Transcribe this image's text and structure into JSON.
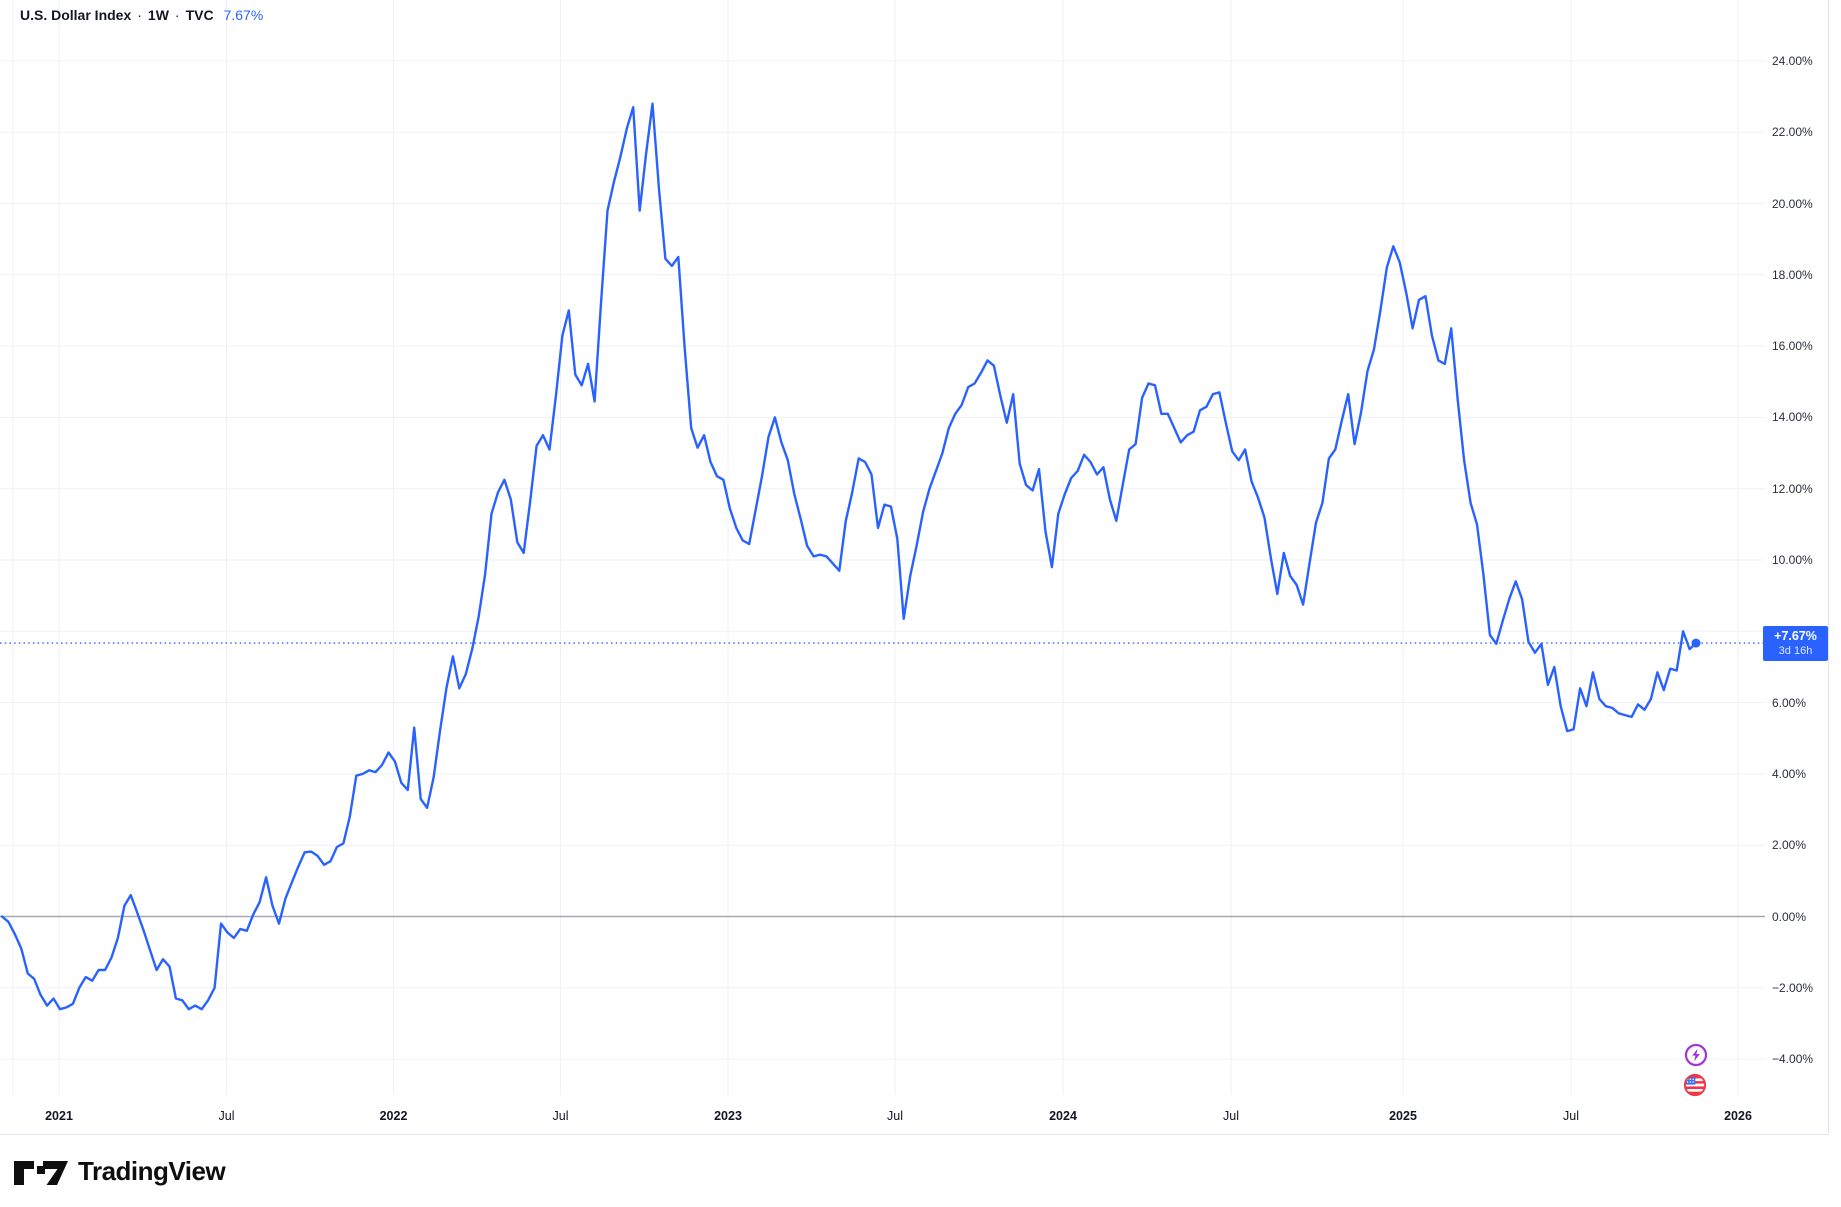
{
  "header": {
    "symbol": "U.S. Dollar Index",
    "separator": "·",
    "interval": "1W",
    "exchange": "TVC",
    "change_pct": "7.67%"
  },
  "price_scale": {
    "labels": [
      "24.00%",
      "22.00%",
      "20.00%",
      "18.00%",
      "16.00%",
      "14.00%",
      "12.00%",
      "10.00%",
      "8.00%",
      "6.00%",
      "4.00%",
      "2.00%",
      "0.00%",
      "−2.00%",
      "−4.00%"
    ],
    "badge": {
      "price": "+7.67%",
      "countdown": "3d 16h"
    }
  },
  "time_scale": {
    "labels": [
      "2021",
      "Jul",
      "2022",
      "Jul",
      "2023",
      "Jul",
      "2024",
      "Jul",
      "2025",
      "Jul",
      "2026"
    ]
  },
  "branding": {
    "logo_text": "TradingView"
  },
  "colors": {
    "line": "#2962FF",
    "grid": "#EEF1F6",
    "zero_line": "#A6A9B3",
    "price_line": "#2962FF",
    "badge_bg": "#2962FF",
    "axis_text": "#2a2e39",
    "border": "#E0E3EB",
    "icon_purple": "#A333D4",
    "icon_red": "#F23645",
    "flag_blue": "#3B6FF0"
  },
  "chart_data": {
    "type": "line",
    "title": "U.S. Dollar Index · 1W · TVC",
    "symbol": "U.S. Dollar Index",
    "interval": "1W",
    "exchange": "TVC",
    "unit": "percent change",
    "current_value_pct": 7.67,
    "price_label": "+7.67%",
    "countdown": "3d 16h",
    "x_start_date": "2020-11-02",
    "x_interval_days": 7,
    "x_tick_labels": [
      "2021",
      "Jul",
      "2022",
      "Jul",
      "2023",
      "Jul",
      "2024",
      "Jul",
      "2025",
      "Jul",
      "2026"
    ],
    "y_ticks": [
      24,
      22,
      20,
      18,
      16,
      14,
      12,
      10,
      8,
      6,
      4,
      2,
      0,
      -2,
      -4
    ],
    "ylim": [
      -5.1,
      25.7
    ],
    "grid": true,
    "legend": false,
    "values_pct": [
      0.0,
      -0.15,
      -0.5,
      -0.9,
      -1.6,
      -1.75,
      -2.2,
      -2.5,
      -2.3,
      -2.6,
      -2.55,
      -2.45,
      -2.0,
      -1.7,
      -1.8,
      -1.5,
      -1.5,
      -1.15,
      -0.6,
      0.3,
      0.6,
      0.1,
      -0.4,
      -0.95,
      -1.5,
      -1.2,
      -1.4,
      -2.3,
      -2.35,
      -2.6,
      -2.5,
      -2.6,
      -2.35,
      -2.0,
      -0.2,
      -0.45,
      -0.6,
      -0.35,
      -0.4,
      0.05,
      0.4,
      1.1,
      0.3,
      -0.2,
      0.5,
      0.95,
      1.4,
      1.8,
      1.82,
      1.7,
      1.45,
      1.55,
      1.95,
      2.05,
      2.8,
      3.95,
      4.0,
      4.1,
      4.05,
      4.25,
      4.6,
      4.35,
      3.75,
      3.55,
      5.3,
      3.3,
      3.05,
      3.9,
      5.2,
      6.4,
      7.3,
      6.4,
      6.8,
      7.5,
      8.4,
      9.6,
      11.3,
      11.9,
      12.25,
      11.7,
      10.5,
      10.2,
      11.65,
      13.2,
      13.5,
      13.1,
      14.6,
      16.3,
      17.0,
      15.2,
      14.9,
      15.5,
      14.45,
      17.2,
      19.8,
      20.6,
      21.3,
      22.1,
      22.7,
      19.8,
      21.4,
      22.8,
      20.4,
      18.45,
      18.25,
      18.5,
      15.9,
      13.7,
      13.15,
      13.5,
      12.75,
      12.35,
      12.25,
      11.45,
      10.9,
      10.55,
      10.45,
      11.4,
      12.35,
      13.45,
      14.0,
      13.3,
      12.8,
      11.85,
      11.15,
      10.4,
      10.1,
      10.15,
      10.1,
      9.9,
      9.7,
      11.1,
      11.9,
      12.85,
      12.75,
      12.4,
      10.9,
      11.55,
      11.5,
      10.6,
      8.35,
      9.55,
      10.4,
      11.35,
      12.0,
      12.5,
      13.0,
      13.7,
      14.1,
      14.35,
      14.85,
      14.95,
      15.25,
      15.6,
      15.45,
      14.6,
      13.85,
      14.65,
      12.7,
      12.1,
      11.95,
      12.55,
      10.8,
      9.8,
      11.3,
      11.85,
      12.3,
      12.5,
      12.95,
      12.75,
      12.4,
      12.6,
      11.7,
      11.1,
      12.1,
      13.1,
      13.25,
      14.55,
      14.95,
      14.9,
      14.1,
      14.1,
      13.7,
      13.3,
      13.5,
      13.6,
      14.2,
      14.3,
      14.65,
      14.7,
      13.85,
      13.05,
      12.8,
      13.1,
      12.2,
      11.75,
      11.2,
      10.05,
      9.05,
      10.2,
      9.55,
      9.3,
      8.75,
      9.9,
      11.05,
      11.6,
      12.85,
      13.1,
      13.9,
      14.65,
      13.25,
      14.15,
      15.3,
      15.9,
      17.0,
      18.2,
      18.8,
      18.35,
      17.5,
      16.5,
      17.3,
      17.4,
      16.3,
      15.6,
      15.5,
      16.5,
      14.5,
      12.8,
      11.6,
      11.0,
      9.6,
      7.9,
      7.65,
      8.3,
      8.9,
      9.4,
      8.9,
      7.7,
      7.4,
      7.65,
      6.5,
      7.0,
      5.9,
      5.2,
      5.25,
      6.4,
      5.9,
      6.85,
      6.1,
      5.9,
      5.85,
      5.7,
      5.65,
      5.6,
      5.95,
      5.8,
      6.1,
      6.85,
      6.35,
      6.95,
      6.9,
      8.0,
      7.5,
      7.67
    ]
  }
}
